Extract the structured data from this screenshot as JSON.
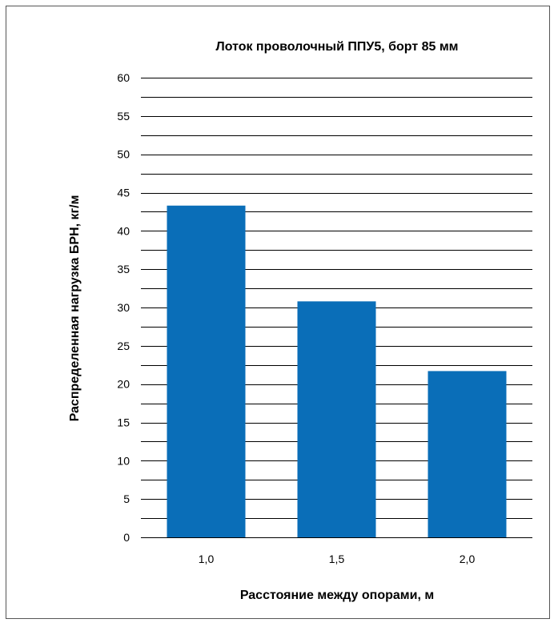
{
  "chart_data": {
    "type": "bar",
    "title": "Лоток проволочный ППУ5, борт 85 мм",
    "xlabel": "Расстояние между опорами, м",
    "ylabel": "Распределенная нагрузка БРН, кг/м",
    "categories": [
      "1,0",
      "1,5",
      "2,0"
    ],
    "values": [
      43.3,
      30.8,
      21.7
    ],
    "ylim": [
      0,
      60
    ],
    "yticks": [
      "0",
      "5",
      "10",
      "15",
      "20",
      "25",
      "30",
      "35",
      "40",
      "45",
      "50",
      "55",
      "60"
    ],
    "bar_color": "#0a6eb8",
    "grid": true,
    "legend": false
  }
}
